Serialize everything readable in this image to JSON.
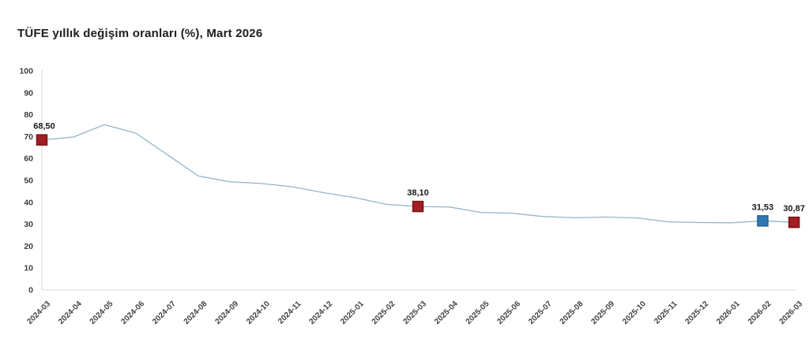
{
  "chart_data": {
    "type": "line",
    "title": "TÜFE yıllık değişim oranları (%), Mart 2026",
    "categories": [
      "2024-03",
      "2024-04",
      "2024-05",
      "2024-06",
      "2024-07",
      "2024-08",
      "2024-09",
      "2024-10",
      "2024-11",
      "2024-12",
      "2025-01",
      "2025-02",
      "2025-03",
      "2025-04",
      "2025-05",
      "2025-06",
      "2025-07",
      "2025-08",
      "2025-09",
      "2025-10",
      "2025-11",
      "2025-12",
      "2026-01",
      "2026-02",
      "2026-03"
    ],
    "values": [
      68.5,
      69.8,
      75.45,
      71.6,
      61.78,
      51.97,
      49.38,
      48.58,
      47.09,
      44.38,
      42.12,
      39.05,
      38.1,
      37.86,
      35.41,
      35.05,
      33.52,
      32.95,
      33.29,
      32.87,
      31.07,
      30.75,
      30.65,
      31.53,
      30.87
    ],
    "ylim": [
      0,
      100
    ],
    "ytick_step": 10,
    "grid": false,
    "legend": "none",
    "colors": {
      "line": "#93b5c8",
      "axis": "#d9d9d9",
      "marker_red_fill": "#a21d24",
      "marker_red_border": "#7d1218",
      "marker_blue_fill": "#2f79b5",
      "marker_blue_border": "#25608f"
    },
    "labeled_points": [
      {
        "category": "2024-03",
        "index": 0,
        "label": "68,50",
        "marker": "red-square"
      },
      {
        "category": "2025-03",
        "index": 12,
        "label": "38,10",
        "marker": "red-square"
      },
      {
        "category": "2026-02",
        "index": 23,
        "label": "31,53",
        "marker": "blue-square"
      },
      {
        "category": "2026-03",
        "index": 24,
        "label": "30,87",
        "marker": "red-square"
      }
    ]
  }
}
